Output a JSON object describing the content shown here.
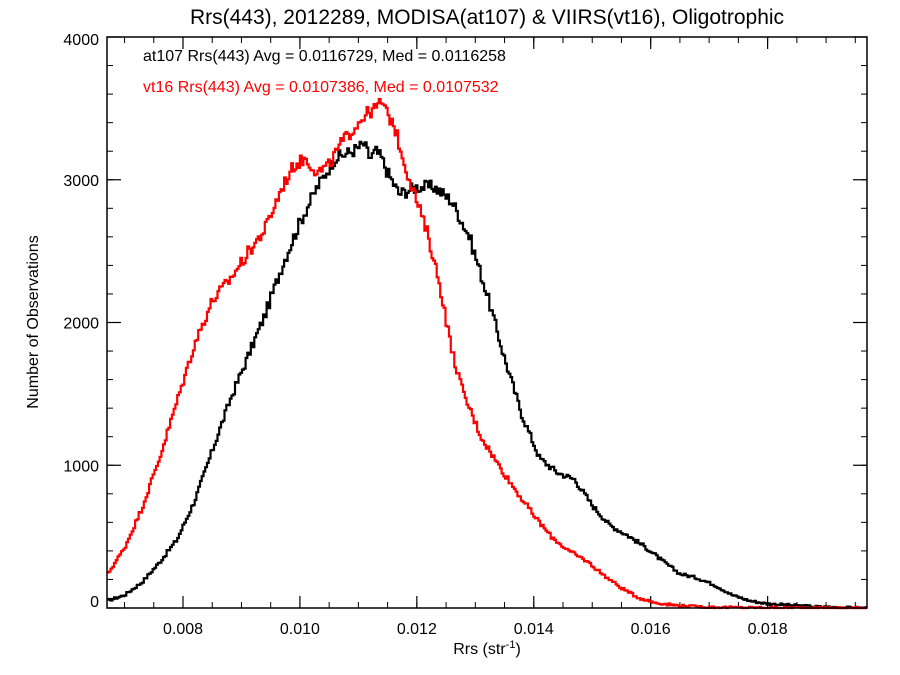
{
  "chart_data": {
    "type": "line",
    "title": "Rrs(443), 2012289, MODISA(at107) & VIIRS(vt16), Oligotrophic",
    "xlabel": "Rrs (str",
    "xlabel_sup": "-1",
    "xlabel_close": ")",
    "ylabel": "Number of Observations",
    "xlim": [
      0.0067,
      0.0197
    ],
    "ylim": [
      0,
      4000
    ],
    "x_ticks": [
      0.008,
      0.01,
      0.012,
      0.014,
      0.016,
      0.018
    ],
    "x_tick_labels": [
      "0.008",
      "0.010",
      "0.012",
      "0.014",
      "0.016",
      "0.018"
    ],
    "y_ticks": [
      0,
      1000,
      2000,
      3000,
      4000
    ],
    "y_tick_labels": [
      "0",
      "1000",
      "2000",
      "3000",
      "4000"
    ],
    "x_minor_step": 0.0005,
    "y_minor_step": 200,
    "step_style": "histogram",
    "series": [
      {
        "name": "at107 Rrs(443) Avg = 0.0116729, Med = 0.0116258",
        "color": "#000000",
        "x": [
          0.0067,
          0.007,
          0.0073,
          0.0076,
          0.0079,
          0.0082,
          0.0085,
          0.0088,
          0.0091,
          0.0094,
          0.0097,
          0.01,
          0.0103,
          0.0106,
          0.0109,
          0.0111,
          0.0112,
          0.0113,
          0.0114,
          0.0115,
          0.0117,
          0.012,
          0.0123,
          0.0126,
          0.0129,
          0.0132,
          0.0135,
          0.0138,
          0.0141,
          0.0144,
          0.0147,
          0.015,
          0.0153,
          0.0156,
          0.0159,
          0.0162,
          0.0165,
          0.0168,
          0.0171,
          0.0174,
          0.0177,
          0.018,
          0.0184,
          0.0188,
          0.0192,
          0.0197
        ],
        "y": [
          50,
          90,
          180,
          320,
          480,
          750,
          1100,
          1450,
          1750,
          2050,
          2400,
          2700,
          2950,
          3150,
          3200,
          3250,
          3150,
          3200,
          3150,
          3050,
          2900,
          2950,
          2950,
          2850,
          2600,
          2200,
          1750,
          1350,
          1050,
          950,
          900,
          720,
          580,
          510,
          430,
          330,
          240,
          210,
          160,
          90,
          50,
          30,
          20,
          10,
          5,
          0
        ]
      },
      {
        "name": "vt16 Rrs(443) Avg = 0.0107386, Med = 0.0107532",
        "color": "#ff0000",
        "x": [
          0.0067,
          0.007,
          0.0073,
          0.0076,
          0.0079,
          0.0082,
          0.0085,
          0.0088,
          0.0091,
          0.0094,
          0.0097,
          0.0099,
          0.0101,
          0.0103,
          0.0105,
          0.0107,
          0.0109,
          0.0111,
          0.0113,
          0.0114,
          0.0115,
          0.0116,
          0.0118,
          0.012,
          0.0122,
          0.0124,
          0.0126,
          0.0128,
          0.0131,
          0.0134,
          0.0137,
          0.014,
          0.0143,
          0.0146,
          0.0149,
          0.0152,
          0.0155,
          0.0158,
          0.0161,
          0.0164,
          0.0167,
          0.017,
          0.0175,
          0.018,
          0.019,
          0.0197
        ],
        "y": [
          230,
          420,
          700,
          1050,
          1450,
          1850,
          2150,
          2300,
          2480,
          2650,
          2950,
          3100,
          3150,
          3050,
          3100,
          3250,
          3350,
          3450,
          3500,
          3550,
          3450,
          3400,
          3100,
          2850,
          2600,
          2250,
          1800,
          1500,
          1200,
          1000,
          820,
          650,
          500,
          400,
          330,
          230,
          140,
          70,
          35,
          20,
          12,
          6,
          3,
          2,
          1,
          0
        ]
      }
    ]
  }
}
